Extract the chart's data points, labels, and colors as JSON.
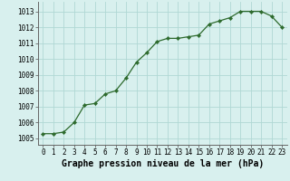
{
  "x": [
    0,
    1,
    2,
    3,
    4,
    5,
    6,
    7,
    8,
    9,
    10,
    11,
    12,
    13,
    14,
    15,
    16,
    17,
    18,
    19,
    20,
    21,
    22,
    23
  ],
  "y": [
    1005.3,
    1005.3,
    1005.4,
    1006.0,
    1007.1,
    1007.2,
    1007.8,
    1008.0,
    1008.8,
    1009.8,
    1010.4,
    1011.1,
    1011.3,
    1011.3,
    1011.4,
    1011.5,
    1012.2,
    1012.4,
    1012.6,
    1013.0,
    1013.0,
    1013.0,
    1012.7,
    1012.0
  ],
  "line_color": "#2d6a2d",
  "marker": "D",
  "marker_size": 2.2,
  "bg_color": "#d8f0ee",
  "grid_color": "#b0d8d4",
  "xlabel": "Graphe pression niveau de la mer (hPa)",
  "xlabel_fontsize": 7.0,
  "ylabel_ticks": [
    1005,
    1006,
    1007,
    1008,
    1009,
    1010,
    1011,
    1012,
    1013
  ],
  "xlim": [
    -0.5,
    23.5
  ],
  "ylim": [
    1004.6,
    1013.6
  ],
  "xtick_labels": [
    "0",
    "1",
    "2",
    "3",
    "4",
    "5",
    "6",
    "7",
    "8",
    "9",
    "10",
    "11",
    "12",
    "13",
    "14",
    "15",
    "16",
    "17",
    "18",
    "19",
    "20",
    "21",
    "22",
    "23"
  ],
  "tick_fontsize": 5.5,
  "spine_color": "#666666",
  "linewidth": 0.9
}
